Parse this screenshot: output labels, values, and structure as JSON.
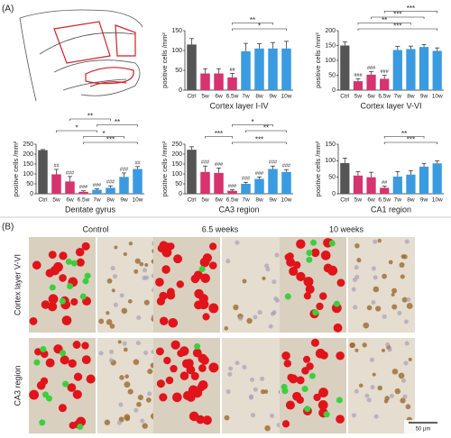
{
  "panel_labels": [
    "(A)",
    "(B)"
  ],
  "chart_data": [
    {
      "type": "bar",
      "title": "Cortex layer I-IV",
      "y_label": "positive cells /mm²",
      "categories": [
        "Ctrl",
        "5w",
        "6w",
        "6.5w",
        "7w",
        "8w",
        "9w",
        "10w"
      ],
      "values": [
        115,
        42,
        42,
        32,
        98,
        105,
        105,
        105
      ],
      "errors": [
        15,
        12,
        12,
        10,
        20,
        12,
        15,
        18
      ],
      "colors": [
        "#555555",
        "#d6336f",
        "#d6336f",
        "#d6336f",
        "#3a9be0",
        "#3a9be0",
        "#3a9be0",
        "#3a9be0"
      ],
      "annotations": [
        null,
        null,
        null,
        "##",
        null,
        null,
        null,
        null
      ],
      "ylim": [
        0,
        150
      ],
      "yticks": [
        0,
        50,
        100,
        150
      ],
      "comparisons": [
        {
          "from": "6.5w",
          "to": "10w",
          "label": "*"
        },
        {
          "from": "6.5w",
          "to": "9w",
          "label": "**"
        }
      ]
    },
    {
      "type": "bar",
      "title": "Cortex layer V-VI",
      "y_label": "positive cells /mm²",
      "categories": [
        "Ctrl",
        "5w",
        "6w",
        "6.5w",
        "7w",
        "8w",
        "9w",
        "10w"
      ],
      "values": [
        150,
        30,
        52,
        38,
        135,
        138,
        145,
        132
      ],
      "errors": [
        12,
        8,
        10,
        12,
        12,
        10,
        8,
        10
      ],
      "colors": [
        "#555555",
        "#d6336f",
        "#d6336f",
        "#d6336f",
        "#3a9be0",
        "#3a9be0",
        "#3a9be0",
        "#3a9be0"
      ],
      "annotations": [
        null,
        "###",
        "###",
        "###",
        null,
        null,
        null,
        null
      ],
      "ylim": [
        0,
        200
      ],
      "yticks": [
        0,
        50,
        100,
        150,
        200
      ],
      "comparisons": [
        {
          "from": "5w",
          "to": "10w",
          "label": "***"
        },
        {
          "from": "5w",
          "to": "8w",
          "label": "**"
        },
        {
          "from": "6w",
          "to": "9w",
          "label": "***"
        },
        {
          "from": "6.5w",
          "to": "10w",
          "label": "***"
        }
      ]
    },
    {
      "type": "bar",
      "title": "Dentate gyrus",
      "y_label": "positive cells /mm²",
      "categories": [
        "Ctrl",
        "5w",
        "6w",
        "6.5w",
        "7w",
        "8w",
        "9w",
        "10w"
      ],
      "values": [
        220,
        98,
        62,
        10,
        20,
        30,
        85,
        125
      ],
      "errors": [
        3,
        25,
        25,
        5,
        5,
        10,
        20,
        12
      ],
      "colors": [
        "#555555",
        "#d6336f",
        "#d6336f",
        "#d6336f",
        "#3a9be0",
        "#3a9be0",
        "#3a9be0",
        "#3a9be0"
      ],
      "annotations": [
        null,
        "##",
        "###",
        "###",
        "###",
        "###",
        "###",
        "##"
      ],
      "ylim": [
        0,
        250
      ],
      "yticks": [
        0,
        50,
        100,
        150,
        200,
        250
      ],
      "comparisons": [
        {
          "from": "6.5w",
          "to": "10w",
          "label": "***"
        },
        {
          "from": "6.5w",
          "to": "9w",
          "label": "*"
        },
        {
          "from": "5w",
          "to": "7w",
          "label": "*"
        },
        {
          "from": "7w",
          "to": "10w",
          "label": "**"
        },
        {
          "from": "6w",
          "to": "8w",
          "label": "**"
        }
      ]
    },
    {
      "type": "bar",
      "title": "CA3 region",
      "y_label": "positive cells /mm²",
      "categories": [
        "Ctrl",
        "5w",
        "6w",
        "6.5w",
        "7w",
        "8w",
        "9w",
        "10w"
      ],
      "values": [
        222,
        110,
        105,
        15,
        50,
        75,
        125,
        110
      ],
      "errors": [
        15,
        30,
        25,
        5,
        8,
        10,
        15,
        12
      ],
      "colors": [
        "#555555",
        "#d6336f",
        "#d6336f",
        "#d6336f",
        "#3a9be0",
        "#3a9be0",
        "#3a9be0",
        "#3a9be0"
      ],
      "annotations": [
        null,
        "###",
        "###",
        "###",
        "###",
        "###",
        "###",
        "###"
      ],
      "ylim": [
        0,
        250
      ],
      "yticks": [
        0,
        50,
        100,
        150,
        200,
        250
      ],
      "comparisons": [
        {
          "from": "6.5w",
          "to": "10w",
          "label": "***"
        },
        {
          "from": "5w",
          "to": "6.5w",
          "label": "***"
        },
        {
          "from": "7w",
          "to": "10w",
          "label": "**"
        },
        {
          "from": "6.5w",
          "to": "9w",
          "label": "*"
        }
      ]
    },
    {
      "type": "bar",
      "title": "CA1 region",
      "y_label": "positive cells /mm²",
      "categories": [
        "Ctrl",
        "5w",
        "6w",
        "6.5w",
        "7w",
        "8w",
        "9w",
        "10w"
      ],
      "values": [
        93,
        55,
        50,
        18,
        52,
        58,
        82,
        92
      ],
      "errors": [
        15,
        12,
        15,
        5,
        15,
        12,
        10,
        8
      ],
      "colors": [
        "#555555",
        "#d6336f",
        "#d6336f",
        "#d6336f",
        "#3a9be0",
        "#3a9be0",
        "#3a9be0",
        "#3a9be0"
      ],
      "annotations": [
        null,
        null,
        null,
        "##",
        null,
        null,
        null,
        null
      ],
      "ylim": [
        0,
        150
      ],
      "yticks": [
        0,
        50,
        100,
        150
      ],
      "comparisons": [
        {
          "from": "6.5w",
          "to": "10w",
          "label": "***"
        },
        {
          "from": "6.5w",
          "to": "9w",
          "label": "**"
        }
      ]
    }
  ],
  "micrographs": {
    "columns": [
      "Control",
      "6.5 weeks",
      "10 weeks"
    ],
    "rows": [
      "Cortex layer V-VI",
      "CA3 region"
    ],
    "scale_bar": "50 µm"
  }
}
